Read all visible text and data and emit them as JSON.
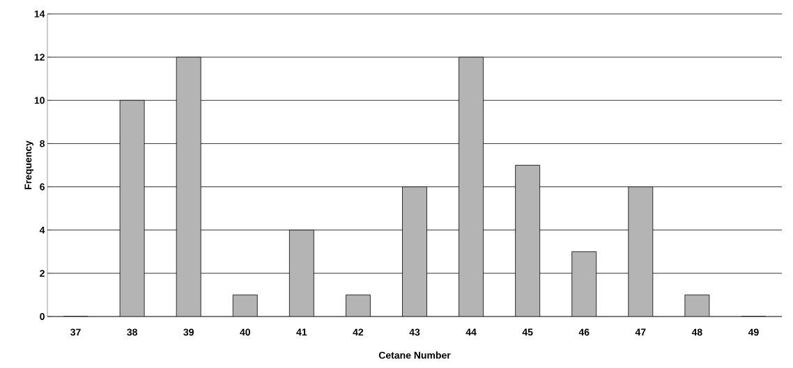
{
  "chart_data": {
    "type": "bar",
    "xlabel": "Cetane Number",
    "ylabel": "Frequency",
    "categories": [
      "37",
      "38",
      "39",
      "40",
      "41",
      "42",
      "43",
      "44",
      "45",
      "46",
      "47",
      "48",
      "49"
    ],
    "values": [
      0,
      10,
      12,
      1,
      4,
      1,
      6,
      12,
      7,
      3,
      6,
      1,
      0
    ],
    "color": "#b4b4b4",
    "ylim": [
      0,
      14
    ],
    "yticks": [
      0,
      2,
      4,
      6,
      8,
      10,
      12,
      14
    ],
    "grid": "y"
  }
}
